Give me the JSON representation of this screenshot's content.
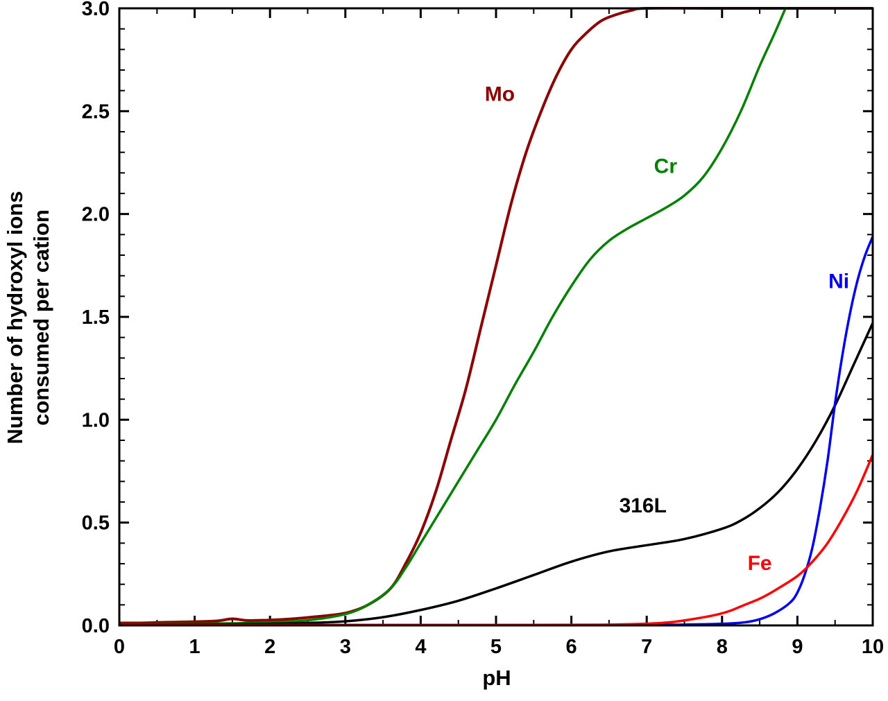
{
  "figure": {
    "background": "#ffffff"
  },
  "chart_data": {
    "type": "line",
    "title": "",
    "xlabel": "pH",
    "ylabel": "Number of hydroxyl ions\nconsumed per cation",
    "xlim": [
      0,
      10
    ],
    "ylim": [
      0,
      3
    ],
    "grid": false,
    "legend": "inline-labels",
    "frame_color": "#000000",
    "x_major_ticks": [
      0,
      1,
      2,
      3,
      4,
      5,
      6,
      7,
      8,
      9,
      10
    ],
    "x_tick_labels": [
      "0",
      "1",
      "2",
      "3",
      "4",
      "5",
      "6",
      "7",
      "8",
      "9",
      "10"
    ],
    "x_minor_step": 0.5,
    "y_major_ticks": [
      0,
      0.5,
      1,
      1.5,
      2,
      2.5,
      3
    ],
    "y_tick_labels": [
      "0.0",
      "0.5",
      "1.0",
      "1.5",
      "2.0",
      "2.5",
      "3.0"
    ],
    "y_minor_step": 0.1,
    "series": [
      {
        "name": "Mo",
        "color": "#8b0000",
        "line_width": 4,
        "points": [
          [
            0,
            0.012
          ],
          [
            0.3,
            0.012
          ],
          [
            0.6,
            0.015
          ],
          [
            1,
            0.018
          ],
          [
            1.3,
            0.022
          ],
          [
            1.5,
            0.032
          ],
          [
            1.7,
            0.024
          ],
          [
            2,
            0.026
          ],
          [
            2.3,
            0.032
          ],
          [
            2.6,
            0.042
          ],
          [
            3,
            0.06
          ],
          [
            3.3,
            0.1
          ],
          [
            3.6,
            0.18
          ],
          [
            3.8,
            0.3
          ],
          [
            4,
            0.45
          ],
          [
            4.2,
            0.65
          ],
          [
            4.4,
            0.9
          ],
          [
            4.6,
            1.15
          ],
          [
            4.8,
            1.45
          ],
          [
            5,
            1.75
          ],
          [
            5.2,
            2.05
          ],
          [
            5.4,
            2.3
          ],
          [
            5.6,
            2.5
          ],
          [
            5.8,
            2.67
          ],
          [
            6,
            2.8
          ],
          [
            6.2,
            2.88
          ],
          [
            6.4,
            2.94
          ],
          [
            6.6,
            2.97
          ],
          [
            6.8,
            2.99
          ],
          [
            7,
            3.0
          ],
          [
            8,
            3.0
          ],
          [
            9,
            3.0
          ],
          [
            10,
            3.0
          ]
        ]
      },
      {
        "name": "Cr",
        "color": "#008000",
        "line_width": 3.5,
        "points": [
          [
            0,
            0.005
          ],
          [
            0.5,
            0.006
          ],
          [
            1,
            0.008
          ],
          [
            1.5,
            0.01
          ],
          [
            2,
            0.015
          ],
          [
            2.5,
            0.025
          ],
          [
            3,
            0.055
          ],
          [
            3.3,
            0.1
          ],
          [
            3.6,
            0.18
          ],
          [
            3.8,
            0.28
          ],
          [
            4,
            0.4
          ],
          [
            4.25,
            0.55
          ],
          [
            4.5,
            0.7
          ],
          [
            4.75,
            0.85
          ],
          [
            5,
            1.0
          ],
          [
            5.25,
            1.17
          ],
          [
            5.5,
            1.33
          ],
          [
            5.75,
            1.5
          ],
          [
            6,
            1.65
          ],
          [
            6.25,
            1.78
          ],
          [
            6.5,
            1.87
          ],
          [
            6.75,
            1.93
          ],
          [
            7,
            1.98
          ],
          [
            7.25,
            2.03
          ],
          [
            7.5,
            2.09
          ],
          [
            7.75,
            2.18
          ],
          [
            8,
            2.32
          ],
          [
            8.25,
            2.5
          ],
          [
            8.5,
            2.72
          ],
          [
            8.7,
            2.88
          ],
          [
            8.9,
            3.05
          ]
        ]
      },
      {
        "name": "316L",
        "color": "#000000",
        "line_width": 3.5,
        "points": [
          [
            0,
            0.004
          ],
          [
            0.5,
            0.004
          ],
          [
            1,
            0.005
          ],
          [
            1.5,
            0.006
          ],
          [
            2,
            0.008
          ],
          [
            2.5,
            0.012
          ],
          [
            3,
            0.02
          ],
          [
            3.5,
            0.04
          ],
          [
            4,
            0.075
          ],
          [
            4.5,
            0.12
          ],
          [
            5,
            0.18
          ],
          [
            5.5,
            0.245
          ],
          [
            6,
            0.31
          ],
          [
            6.5,
            0.36
          ],
          [
            7,
            0.39
          ],
          [
            7.5,
            0.42
          ],
          [
            8,
            0.47
          ],
          [
            8.25,
            0.51
          ],
          [
            8.5,
            0.57
          ],
          [
            8.75,
            0.65
          ],
          [
            9,
            0.76
          ],
          [
            9.25,
            0.9
          ],
          [
            9.5,
            1.07
          ],
          [
            9.75,
            1.27
          ],
          [
            10,
            1.47
          ]
        ]
      },
      {
        "name": "Ni",
        "color": "#0000ee",
        "line_width": 3.5,
        "points": [
          [
            0,
            0.002
          ],
          [
            2,
            0.002
          ],
          [
            4,
            0.002
          ],
          [
            6,
            0.002
          ],
          [
            7,
            0.003
          ],
          [
            7.5,
            0.004
          ],
          [
            8,
            0.008
          ],
          [
            8.3,
            0.015
          ],
          [
            8.5,
            0.03
          ],
          [
            8.7,
            0.06
          ],
          [
            8.9,
            0.11
          ],
          [
            9,
            0.16
          ],
          [
            9.1,
            0.25
          ],
          [
            9.2,
            0.38
          ],
          [
            9.3,
            0.57
          ],
          [
            9.4,
            0.8
          ],
          [
            9.5,
            1.08
          ],
          [
            9.6,
            1.32
          ],
          [
            9.7,
            1.52
          ],
          [
            9.8,
            1.68
          ],
          [
            9.9,
            1.8
          ],
          [
            10,
            1.89
          ]
        ]
      },
      {
        "name": "Fe",
        "color": "#ff0000",
        "line_width": 3.5,
        "points": [
          [
            0,
            0.002
          ],
          [
            2,
            0.002
          ],
          [
            4,
            0.002
          ],
          [
            6,
            0.003
          ],
          [
            6.5,
            0.004
          ],
          [
            7,
            0.008
          ],
          [
            7.3,
            0.015
          ],
          [
            7.6,
            0.03
          ],
          [
            7.9,
            0.05
          ],
          [
            8.1,
            0.07
          ],
          [
            8.3,
            0.1
          ],
          [
            8.5,
            0.13
          ],
          [
            8.7,
            0.17
          ],
          [
            9,
            0.24
          ],
          [
            9.2,
            0.31
          ],
          [
            9.4,
            0.4
          ],
          [
            9.6,
            0.52
          ],
          [
            9.8,
            0.66
          ],
          [
            10,
            0.83
          ]
        ]
      }
    ],
    "annotations": [
      {
        "text": "Mo",
        "x": 5.05,
        "y": 2.55,
        "color": "#8b0000"
      },
      {
        "text": "Cr",
        "x": 7.25,
        "y": 2.2,
        "color": "#008000"
      },
      {
        "text": "Ni",
        "x": 9.55,
        "y": 1.64,
        "color": "#0000ee"
      },
      {
        "text": "316L",
        "x": 6.95,
        "y": 0.55,
        "color": "#000000"
      },
      {
        "text": "Fe",
        "x": 8.5,
        "y": 0.27,
        "color": "#ff0000"
      }
    ]
  }
}
